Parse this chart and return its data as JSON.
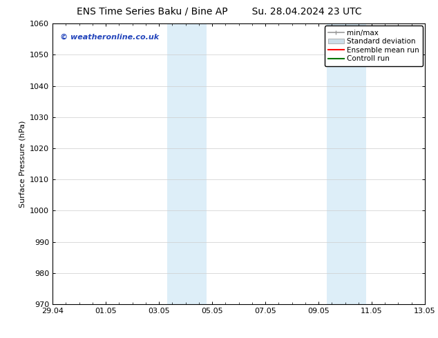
{
  "title_left": "ENS Time Series Baku / Bine AP",
  "title_right": "Su. 28.04.2024 23 UTC",
  "ylabel": "Surface Pressure (hPa)",
  "bg_color": "#ffffff",
  "plot_bg_color": "#ffffff",
  "ylim": [
    970,
    1060
  ],
  "yticks": [
    970,
    980,
    990,
    1000,
    1010,
    1020,
    1030,
    1040,
    1050,
    1060
  ],
  "xtick_labels": [
    "29.04",
    "01.05",
    "03.05",
    "05.05",
    "07.05",
    "09.05",
    "11.05",
    "13.05"
  ],
  "xmin": 0,
  "xmax": 14,
  "xtick_positions": [
    0,
    2,
    4,
    6,
    8,
    10,
    12,
    14
  ],
  "shaded_regions": [
    {
      "xmin": 4.3,
      "xmax": 5.8,
      "color": "#ddeef8"
    },
    {
      "xmin": 10.3,
      "xmax": 11.8,
      "color": "#ddeef8"
    }
  ],
  "watermark_text": "© weatheronline.co.uk",
  "watermark_color": "#2244bb",
  "legend_items": [
    {
      "label": "min/max",
      "color": "#999999",
      "lw": 1.2,
      "style": "minmax"
    },
    {
      "label": "Standard deviation",
      "color": "#ccdde8",
      "lw": 8,
      "style": "band"
    },
    {
      "label": "Ensemble mean run",
      "color": "#ff0000",
      "lw": 1.5,
      "style": "line"
    },
    {
      "label": "Controll run",
      "color": "#007700",
      "lw": 1.5,
      "style": "line"
    }
  ],
  "grid_color": "#cccccc",
  "spine_color": "#000000",
  "tick_color": "#000000",
  "title_fontsize": 10,
  "label_fontsize": 8,
  "tick_fontsize": 8,
  "legend_fontsize": 7.5
}
